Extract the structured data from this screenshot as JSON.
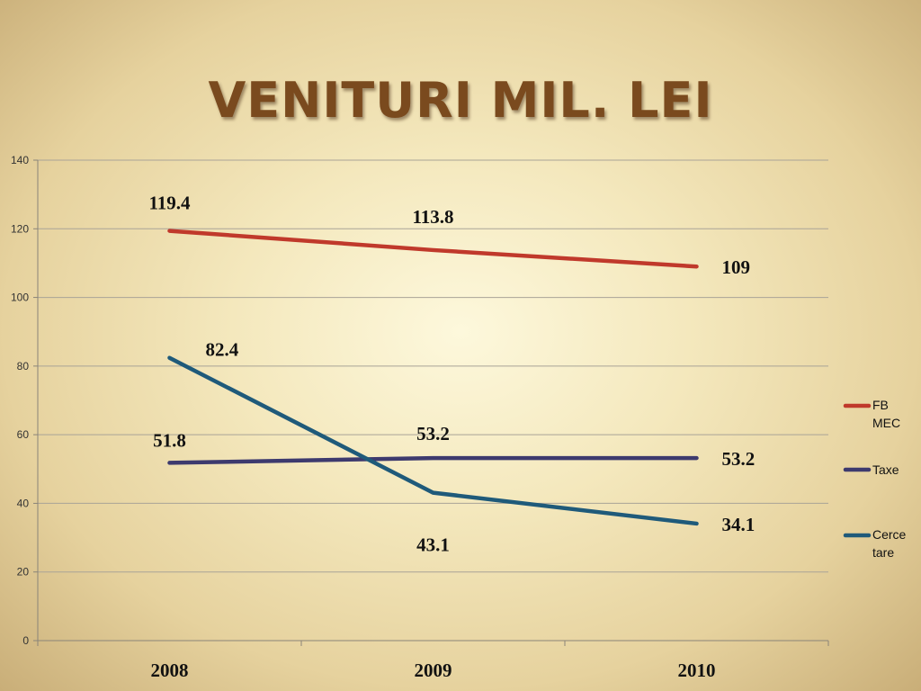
{
  "chart_data": {
    "type": "line",
    "title": "VENITURI MIL. LEI",
    "categories": [
      "2008",
      "2009",
      "2010"
    ],
    "ylim": [
      0,
      140
    ],
    "yticks": [
      0,
      20,
      40,
      60,
      80,
      100,
      120,
      140
    ],
    "grid": true,
    "legend_position": "right",
    "series": [
      {
        "name": "FB MEC",
        "legend_lines": [
          "FB",
          "MEC"
        ],
        "color": "#c0392b",
        "values": [
          119.4,
          113.8,
          109
        ],
        "labels": [
          "119.4",
          "113.8",
          "109"
        ]
      },
      {
        "name": "Taxe",
        "legend_lines": [
          "Taxe"
        ],
        "color": "#3d3a6e",
        "values": [
          51.8,
          53.2,
          53.2
        ],
        "labels": [
          "51.8",
          "53.2",
          "53.2"
        ]
      },
      {
        "name": "Cercetare",
        "legend_lines": [
          "Cerce",
          "tare"
        ],
        "color": "#1f5a7a",
        "values": [
          82.4,
          43.1,
          34.1
        ],
        "labels": [
          "82.4",
          "43.1",
          "34.1"
        ]
      }
    ]
  }
}
